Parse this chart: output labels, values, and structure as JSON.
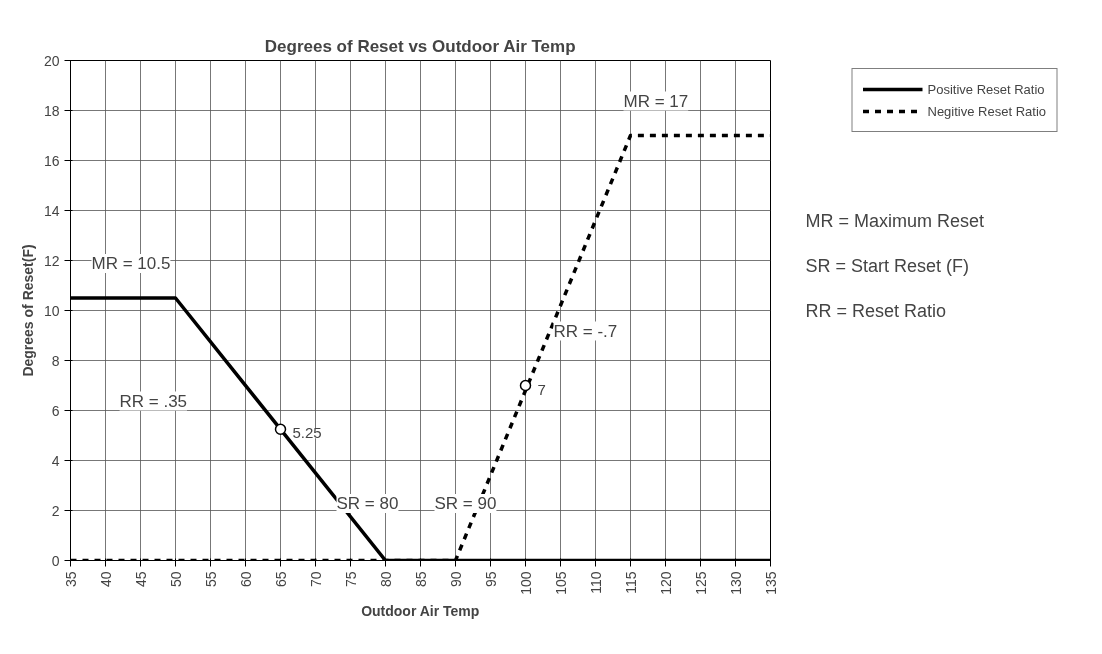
{
  "chart_data": {
    "type": "line",
    "title": "Degrees of Reset vs Outdoor Air Temp",
    "xlabel": "Outdoor Air Temp",
    "ylabel": "Degrees of Reset(F)",
    "xlim": [
      35,
      135
    ],
    "xticks": [
      35,
      40,
      45,
      50,
      55,
      60,
      65,
      70,
      75,
      80,
      85,
      90,
      95,
      100,
      105,
      110,
      115,
      120,
      125,
      130,
      135
    ],
    "ylim": [
      0,
      20
    ],
    "yticks": [
      0,
      2,
      4,
      6,
      8,
      10,
      12,
      14,
      16,
      18,
      20
    ],
    "grid": true,
    "legend": "top right",
    "series": [
      {
        "name": "Positive Reset Ratio",
        "color": "#000000",
        "line_style": "solid",
        "x": [
          35,
          50,
          80,
          135
        ],
        "values": [
          10.5,
          10.5,
          0,
          0
        ]
      },
      {
        "name": "Negitive Reset Ratio",
        "color": "#000000",
        "line_style": "dashed",
        "x": [
          35,
          90,
          115,
          135
        ],
        "values": [
          0,
          0,
          17,
          17
        ]
      },
      {
        "type": "scatter",
        "color": "#000000",
        "marker": "circle",
        "x": [
          65,
          100
        ],
        "values": [
          5.25,
          7
        ]
      }
    ],
    "annotations": [
      "MR = 10.5",
      "MR = 17",
      "SR = 80",
      "SR = 90",
      "RR = .35",
      "RR = -.7",
      {
        "text": "5.25",
        "x": 65,
        "y": 5.25
      },
      {
        "text": "7",
        "x": 100,
        "y": 7
      },
      "MR = Maximum Reset",
      "SR = Start Reset (F)",
      "RR = Reset Ratio"
    ]
  }
}
